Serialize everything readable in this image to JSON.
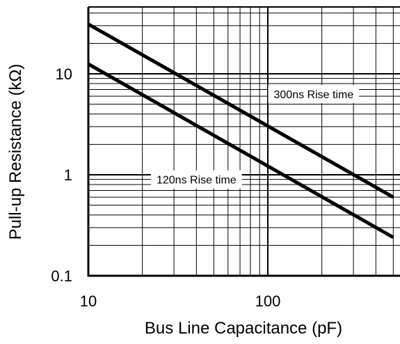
{
  "chart_data": {
    "type": "line",
    "title": "",
    "xlabel": "Bus Line Capacitance (pF)",
    "ylabel": "Pull-up Resistance (kΩ)",
    "x_scale": "log",
    "y_scale": "log",
    "xlim": [
      10,
      500
    ],
    "ylim": [
      0.1,
      50
    ],
    "x_tick_labels": [
      "10",
      "100"
    ],
    "y_tick_labels": [
      "10",
      "1",
      "0.1"
    ],
    "x_tick_values": [
      10,
      100
    ],
    "y_tick_values": [
      10,
      1,
      0.1
    ],
    "grid": true,
    "series": [
      {
        "name": "300ns Rise time",
        "x": [
          10,
          500
        ],
        "y": [
          31,
          0.6
        ]
      },
      {
        "name": "120ns Rise time",
        "x": [
          10,
          500
        ],
        "y": [
          12.5,
          0.24
        ]
      }
    ],
    "annotations": [
      {
        "text": "300ns Rise time",
        "x": 180,
        "y": 6.3
      },
      {
        "text": "120ns Rise time",
        "x": 40,
        "y": 0.9
      }
    ]
  }
}
